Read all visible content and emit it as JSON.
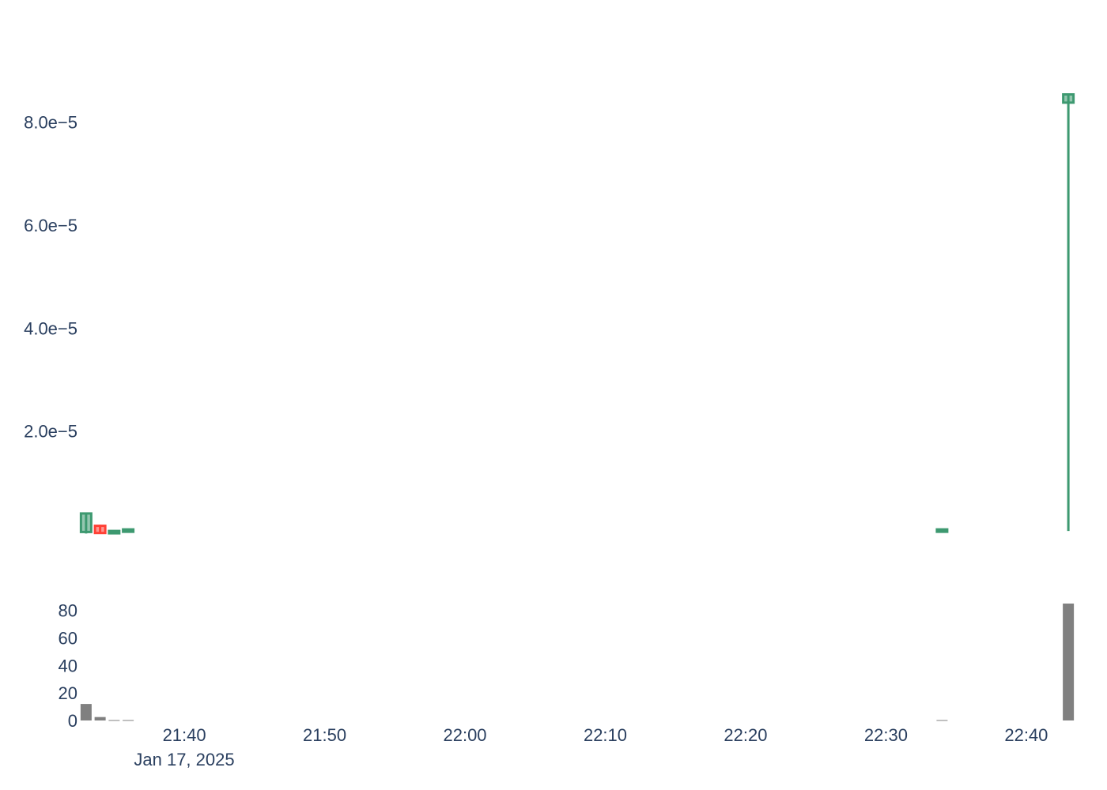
{
  "chart_data": [
    {
      "type": "candlestick",
      "title": "",
      "xlabel": "",
      "ylabel": "",
      "grid": false,
      "legend": "none",
      "x_range": [
        "2025-01-17 21:32:30",
        "2025-01-17 22:43:30"
      ],
      "y_range": [
        0,
        9.76e-05
      ],
      "y_ticks": [
        {
          "value": 2e-05,
          "label": "2.0e−5"
        },
        {
          "value": 4e-05,
          "label": "4.0e−5"
        },
        {
          "value": 6e-05,
          "label": "6.0e−5"
        },
        {
          "value": 8e-05,
          "label": "8.0e−5"
        }
      ],
      "increasing_color": "#3d9970",
      "decreasing_color": "#ff4136",
      "candles": [
        {
          "time": "2025-01-17 21:33:00",
          "open": 4e-07,
          "high": 4e-06,
          "low": 1e-07,
          "close": 4e-06
        },
        {
          "time": "2025-01-17 21:34:00",
          "open": 1.6e-06,
          "high": 1.8e-06,
          "low": 1e-07,
          "close": 2e-07
        },
        {
          "time": "2025-01-17 21:35:00",
          "open": 4e-07,
          "high": 7e-07,
          "low": 4e-07,
          "close": 6e-07
        },
        {
          "time": "2025-01-17 21:36:00",
          "open": 7e-07,
          "high": 9e-07,
          "low": 7e-07,
          "close": 9e-07
        },
        {
          "time": "2025-01-17 22:34:00",
          "open": 7e-07,
          "high": 9e-07,
          "low": 7e-07,
          "close": 9e-07
        },
        {
          "time": "2025-01-17 22:43:00",
          "open": 8.38e-05,
          "high": 8.54e-05,
          "low": 6e-07,
          "close": 8.54e-05
        }
      ]
    },
    {
      "type": "bar",
      "title": "",
      "xlabel": "",
      "ylabel": "",
      "grid": false,
      "legend": "none",
      "y_range": [
        0,
        85
      ],
      "y_ticks": [
        0,
        20,
        40,
        60,
        80
      ],
      "bar_color": "#808080",
      "x_ticks": [
        "21:40",
        "21:50",
        "22:00",
        "22:10",
        "22:20",
        "22:30",
        "22:40"
      ],
      "x_date_label": "Jan 17, 2025",
      "volumes": [
        {
          "time": "2025-01-17 21:33:00",
          "value": 12
        },
        {
          "time": "2025-01-17 21:34:00",
          "value": 2.5
        },
        {
          "time": "2025-01-17 21:35:00",
          "value": 0.3
        },
        {
          "time": "2025-01-17 21:36:00",
          "value": 0.3
        },
        {
          "time": "2025-01-17 22:34:00",
          "value": 0.3
        },
        {
          "time": "2025-01-17 22:43:00",
          "value": 85
        }
      ]
    }
  ]
}
